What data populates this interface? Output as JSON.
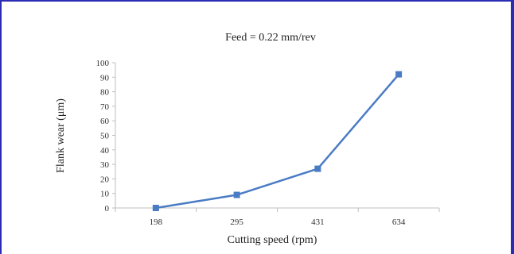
{
  "chart_data": {
    "type": "line",
    "title": "Feed = 0.22 mm/rev",
    "xlabel": "Cutting speed (rpm)",
    "ylabel": "Flank wear (μm)",
    "categories": [
      "198",
      "295",
      "431",
      "634"
    ],
    "series": [
      {
        "values": [
          0,
          9,
          27,
          92
        ]
      }
    ],
    "ylim": [
      0,
      100
    ],
    "yticks": [
      "0",
      "10",
      "20",
      "30",
      "40",
      "50",
      "60",
      "70",
      "80",
      "90",
      "100"
    ],
    "grid": false,
    "legend": "none",
    "colors": {
      "line": "#4a7cc4",
      "marker": "#4a7cc4",
      "axis": "#bfbfbf",
      "frame": "#2b2bb3"
    }
  }
}
